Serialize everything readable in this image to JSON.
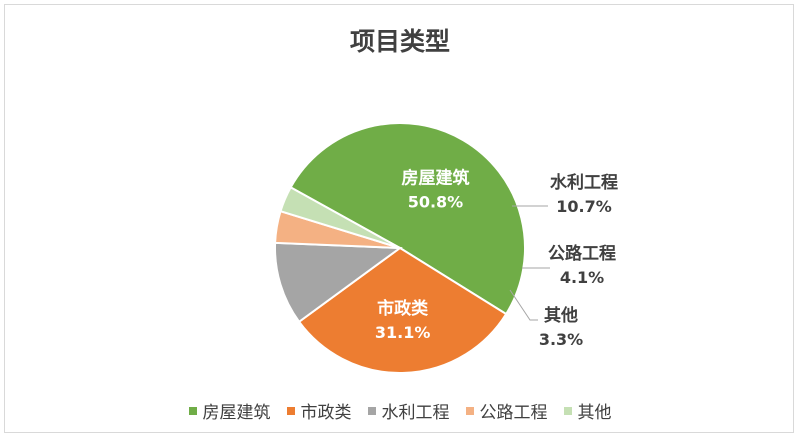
{
  "chart_data": {
    "type": "pie",
    "title": "项目类型",
    "legend_position": "bottom",
    "slices": [
      {
        "label": "房屋建筑",
        "value": 50.8,
        "value_label": "50.8%",
        "color": "#70ad47",
        "label_position": "inside"
      },
      {
        "label": "市政类",
        "value": 31.1,
        "value_label": "31.1%",
        "color": "#ed7d31",
        "label_position": "inside"
      },
      {
        "label": "水利工程",
        "value": 10.7,
        "value_label": "10.7%",
        "color": "#a5a5a5",
        "label_position": "outside"
      },
      {
        "label": "公路工程",
        "value": 4.1,
        "value_label": "4.1%",
        "color": "#f4b183",
        "label_position": "outside"
      },
      {
        "label": "其他",
        "value": 3.3,
        "value_label": "3.3%",
        "color": "#c5e0b4",
        "label_position": "outside"
      }
    ]
  }
}
